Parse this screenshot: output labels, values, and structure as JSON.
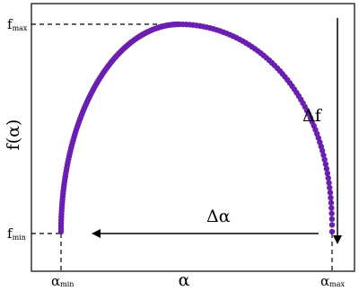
{
  "y_axis": {
    "label": "f(α)",
    "ticks": [
      {
        "main": "f",
        "sub": "max"
      },
      {
        "main": "f",
        "sub": "min"
      }
    ]
  },
  "x_axis": {
    "label": "α",
    "ticks": [
      {
        "main": "α",
        "sub": "min"
      },
      {
        "main": "α",
        "sub": "max"
      }
    ]
  },
  "annotations": {
    "delta_f": "Δf",
    "delta_alpha": "Δα"
  }
}
